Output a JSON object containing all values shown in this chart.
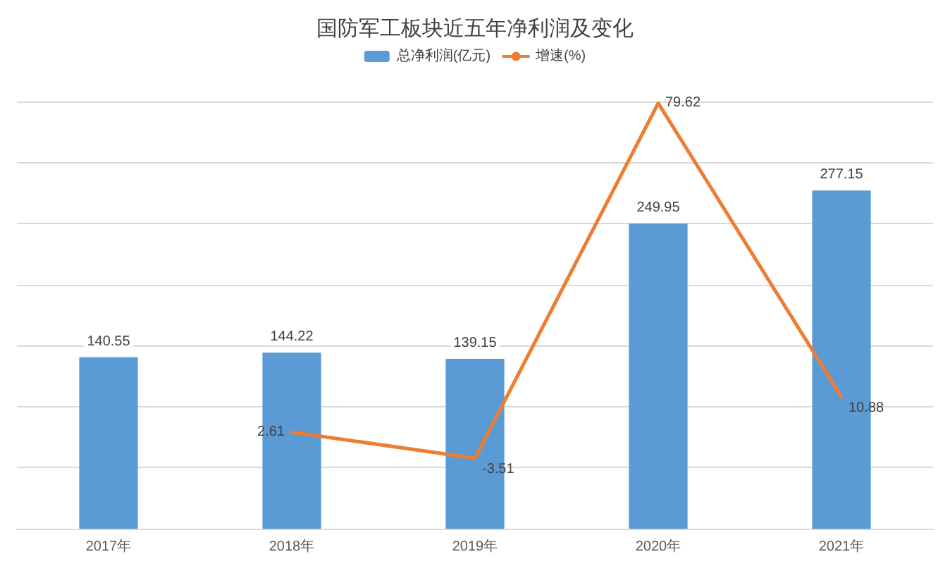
{
  "chart_data": {
    "type": "bar",
    "title": "国防军工板块近五年净利润及变化",
    "categories": [
      "2017年",
      "2018年",
      "2019年",
      "2020年",
      "2021年"
    ],
    "series": [
      {
        "name": "总净利润(亿元)",
        "color": "#5b9bd5",
        "values": [
          140.55,
          144.22,
          139.15,
          249.95,
          277.15
        ]
      },
      {
        "name": "增速(%)",
        "type": "line",
        "axis": "y2",
        "color": "#ed7d31",
        "values": [
          null,
          2.61,
          -3.51,
          79.62,
          10.88
        ]
      }
    ],
    "ylim": [
      0,
      350
    ],
    "yticks": [
      {
        "value": 0,
        "label": null
      },
      {
        "value": 50,
        "label": null
      },
      {
        "value": 100,
        "label": null
      },
      {
        "value": 150,
        "label": null
      },
      {
        "value": 200,
        "label": null
      },
      {
        "value": 250,
        "label": null
      },
      {
        "value": 300,
        "label": null
      },
      {
        "value": 350,
        "label": null
      }
    ],
    "tick_labels": "x",
    "grid": "y",
    "legend": "top",
    "data_labels": true,
    "marker": "none",
    "line_style": "solid"
  }
}
